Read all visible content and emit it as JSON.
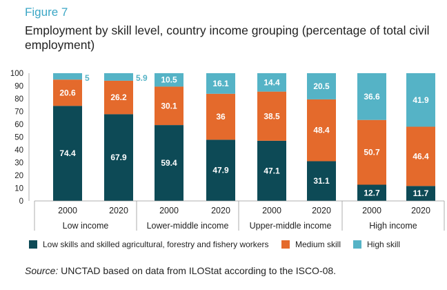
{
  "figure": {
    "label": "Figure 7",
    "title": "Employment by skill level, country income grouping (percentage of total civil employment)",
    "source_prefix": "Source:",
    "source_text": " UNCTAD based on data from ILOStat according to the ISCO-08."
  },
  "colors": {
    "low": "#0d4a56",
    "medium": "#e46a2c",
    "high": "#55b3c6"
  },
  "chart_data": {
    "type": "bar",
    "stacked": true,
    "title": "Employment by skill level, country income grouping (percentage of total civil employment)",
    "ylim": [
      0,
      100
    ],
    "yticks": [
      0,
      10,
      20,
      30,
      40,
      50,
      60,
      70,
      80,
      90,
      100
    ],
    "groups": [
      "Low income",
      "Lower-middle income",
      "Upper-middle income",
      "High income"
    ],
    "categories": [
      "2000",
      "2020",
      "2000",
      "2020",
      "2000",
      "2020",
      "2000",
      "2020"
    ],
    "series": [
      {
        "name": "Low skills and skilled agricultural, forestry and fishery workers",
        "key": "low",
        "values": [
          74.4,
          67.9,
          59.4,
          47.9,
          47.1,
          31.1,
          12.7,
          11.7
        ]
      },
      {
        "name": "Medium skill",
        "key": "medium",
        "values": [
          20.6,
          26.2,
          30.1,
          36,
          38.5,
          48.4,
          50.7,
          46.4
        ]
      },
      {
        "name": "High skill",
        "key": "high",
        "values": [
          5,
          5.9,
          10.5,
          16.1,
          14.4,
          20.5,
          36.6,
          41.9
        ]
      }
    ],
    "legend_position": "bottom"
  }
}
